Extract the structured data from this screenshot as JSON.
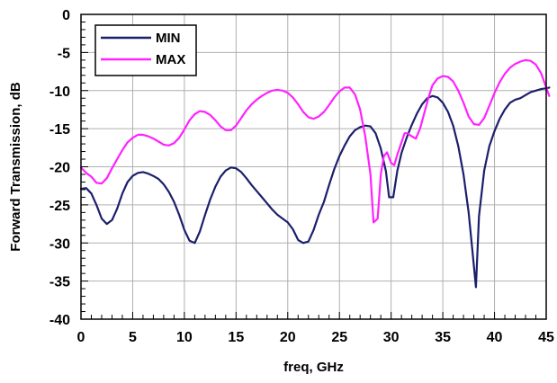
{
  "chart_data": {
    "type": "line",
    "title": "",
    "xlabel": "freq, GHz",
    "ylabel": "Forward Transmission, dB",
    "xlim": [
      0,
      45
    ],
    "ylim": [
      -40,
      0
    ],
    "x_ticks": [
      0,
      5,
      10,
      15,
      20,
      25,
      30,
      35,
      40,
      45
    ],
    "y_ticks": [
      0,
      -5,
      -10,
      -15,
      -20,
      -25,
      -30,
      -35,
      -40
    ],
    "x_tick_labels": [
      "0",
      "5",
      "10",
      "15",
      "20",
      "25",
      "30",
      "35",
      "40",
      "45"
    ],
    "y_tick_labels": [
      "0",
      "-5",
      "-10",
      "-15",
      "-20",
      "-25",
      "-30",
      "-35",
      "-40"
    ],
    "grid": true,
    "legend_position": "top-left",
    "series": [
      {
        "name": "MIN",
        "color": "#1b1f6b",
        "points": [
          [
            0,
            -22.9
          ],
          [
            0.5,
            -22.8
          ],
          [
            1,
            -23.5
          ],
          [
            1.5,
            -25
          ],
          [
            2,
            -26.8
          ],
          [
            2.5,
            -27.5
          ],
          [
            3,
            -27
          ],
          [
            3.5,
            -25.5
          ],
          [
            4,
            -23.5
          ],
          [
            4.5,
            -22
          ],
          [
            5,
            -21.2
          ],
          [
            5.5,
            -20.8
          ],
          [
            6,
            -20.7
          ],
          [
            6.5,
            -20.9
          ],
          [
            7,
            -21.2
          ],
          [
            7.5,
            -21.6
          ],
          [
            8,
            -22.3
          ],
          [
            8.5,
            -23.3
          ],
          [
            9,
            -24.6
          ],
          [
            9.5,
            -26.3
          ],
          [
            10,
            -28.3
          ],
          [
            10.5,
            -29.7
          ],
          [
            11,
            -30
          ],
          [
            11.5,
            -28.5
          ],
          [
            12,
            -26.3
          ],
          [
            12.5,
            -24.3
          ],
          [
            13,
            -22.6
          ],
          [
            13.5,
            -21.3
          ],
          [
            14,
            -20.5
          ],
          [
            14.5,
            -20.1
          ],
          [
            15,
            -20.2
          ],
          [
            15.5,
            -20.7
          ],
          [
            16,
            -21.5
          ],
          [
            16.5,
            -22.4
          ],
          [
            17,
            -23.2
          ],
          [
            17.5,
            -24
          ],
          [
            18,
            -24.8
          ],
          [
            18.5,
            -25.6
          ],
          [
            19,
            -26.3
          ],
          [
            19.5,
            -26.8
          ],
          [
            20,
            -27.3
          ],
          [
            20.5,
            -28.2
          ],
          [
            21,
            -29.6
          ],
          [
            21.5,
            -30
          ],
          [
            22,
            -29.8
          ],
          [
            22.5,
            -28.3
          ],
          [
            23,
            -26.3
          ],
          [
            23.5,
            -24.6
          ],
          [
            24,
            -22.4
          ],
          [
            24.5,
            -20.3
          ],
          [
            25,
            -18.6
          ],
          [
            25.5,
            -17.2
          ],
          [
            26,
            -16
          ],
          [
            26.5,
            -15.2
          ],
          [
            27,
            -14.8
          ],
          [
            27.5,
            -14.6
          ],
          [
            28,
            -14.7
          ],
          [
            28.5,
            -15.6
          ],
          [
            29,
            -17.6
          ],
          [
            29.5,
            -20.6
          ],
          [
            29.8,
            -24
          ],
          [
            30.2,
            -24
          ],
          [
            30.6,
            -20.5
          ],
          [
            31,
            -18.2
          ],
          [
            31.5,
            -16.2
          ],
          [
            32,
            -14.5
          ],
          [
            32.5,
            -13
          ],
          [
            33,
            -11.8
          ],
          [
            33.5,
            -11
          ],
          [
            34,
            -10.7
          ],
          [
            34.5,
            -10.9
          ],
          [
            35,
            -11.6
          ],
          [
            35.5,
            -12.8
          ],
          [
            36,
            -14.6
          ],
          [
            36.5,
            -17.3
          ],
          [
            37,
            -21
          ],
          [
            37.5,
            -26
          ],
          [
            37.9,
            -31.5
          ],
          [
            38.2,
            -35.8
          ],
          [
            38.5,
            -26.5
          ],
          [
            39,
            -20.5
          ],
          [
            39.5,
            -17.3
          ],
          [
            40,
            -15.3
          ],
          [
            40.5,
            -13.7
          ],
          [
            41,
            -12.5
          ],
          [
            41.5,
            -11.6
          ],
          [
            42,
            -11.2
          ],
          [
            42.5,
            -11
          ],
          [
            43,
            -10.6
          ],
          [
            43.5,
            -10.2
          ],
          [
            44,
            -10
          ],
          [
            44.5,
            -9.8
          ],
          [
            45,
            -9.7
          ],
          [
            45.3,
            -9.6
          ]
        ]
      },
      {
        "name": "MAX",
        "color": "#ff22ff",
        "points": [
          [
            0,
            -20.1
          ],
          [
            0.5,
            -20.8
          ],
          [
            1,
            -21.3
          ],
          [
            1.5,
            -22.1
          ],
          [
            2,
            -22.2
          ],
          [
            2.5,
            -21.5
          ],
          [
            3,
            -20.2
          ],
          [
            3.5,
            -19
          ],
          [
            4,
            -17.8
          ],
          [
            4.5,
            -16.8
          ],
          [
            5,
            -16.2
          ],
          [
            5.5,
            -15.8
          ],
          [
            6,
            -15.8
          ],
          [
            6.5,
            -16
          ],
          [
            7,
            -16.3
          ],
          [
            7.5,
            -16.7
          ],
          [
            8,
            -17.1
          ],
          [
            8.5,
            -17.2
          ],
          [
            9,
            -16.9
          ],
          [
            9.5,
            -16.2
          ],
          [
            10,
            -15.1
          ],
          [
            10.5,
            -13.9
          ],
          [
            11,
            -13.1
          ],
          [
            11.5,
            -12.7
          ],
          [
            12,
            -12.8
          ],
          [
            12.5,
            -13.2
          ],
          [
            13,
            -13.9
          ],
          [
            13.5,
            -14.7
          ],
          [
            14,
            -15.2
          ],
          [
            14.5,
            -15.2
          ],
          [
            15,
            -14.6
          ],
          [
            15.5,
            -13.6
          ],
          [
            16,
            -12.6
          ],
          [
            16.5,
            -11.8
          ],
          [
            17,
            -11.2
          ],
          [
            17.5,
            -10.7
          ],
          [
            18,
            -10.3
          ],
          [
            18.5,
            -10
          ],
          [
            19,
            -9.9
          ],
          [
            19.5,
            -10
          ],
          [
            20,
            -10.3
          ],
          [
            20.5,
            -10.9
          ],
          [
            21,
            -11.8
          ],
          [
            21.5,
            -12.8
          ],
          [
            22,
            -13.5
          ],
          [
            22.5,
            -13.7
          ],
          [
            23,
            -13.4
          ],
          [
            23.5,
            -12.8
          ],
          [
            24,
            -11.9
          ],
          [
            24.5,
            -10.9
          ],
          [
            25,
            -10.1
          ],
          [
            25.5,
            -9.6
          ],
          [
            26,
            -9.6
          ],
          [
            26.5,
            -10.5
          ],
          [
            27,
            -12.5
          ],
          [
            27.5,
            -16
          ],
          [
            28,
            -21
          ],
          [
            28.3,
            -27.3
          ],
          [
            28.7,
            -26.8
          ],
          [
            29,
            -21
          ],
          [
            29.3,
            -18.6
          ],
          [
            29.6,
            -18.1
          ],
          [
            30,
            -19.5
          ],
          [
            30.3,
            -19.8
          ],
          [
            30.6,
            -18.4
          ],
          [
            31,
            -16.8
          ],
          [
            31.3,
            -15.6
          ],
          [
            31.6,
            -15.6
          ],
          [
            32,
            -16
          ],
          [
            32.4,
            -16.3
          ],
          [
            32.8,
            -15
          ],
          [
            33.2,
            -13
          ],
          [
            33.6,
            -11
          ],
          [
            34,
            -9.3
          ],
          [
            34.5,
            -8.4
          ],
          [
            35,
            -8.1
          ],
          [
            35.5,
            -8.2
          ],
          [
            36,
            -8.8
          ],
          [
            36.5,
            -10
          ],
          [
            37,
            -11.6
          ],
          [
            37.5,
            -13.4
          ],
          [
            38,
            -14.4
          ],
          [
            38.5,
            -14.5
          ],
          [
            39,
            -13.6
          ],
          [
            39.5,
            -12
          ],
          [
            40,
            -10.3
          ],
          [
            40.5,
            -8.9
          ],
          [
            41,
            -7.8
          ],
          [
            41.5,
            -7
          ],
          [
            42,
            -6.5
          ],
          [
            42.5,
            -6.2
          ],
          [
            43,
            -6
          ],
          [
            43.5,
            -6.1
          ],
          [
            44,
            -6.6
          ],
          [
            44.5,
            -7.7
          ],
          [
            45,
            -9.6
          ],
          [
            45.3,
            -10.7
          ]
        ]
      }
    ]
  }
}
